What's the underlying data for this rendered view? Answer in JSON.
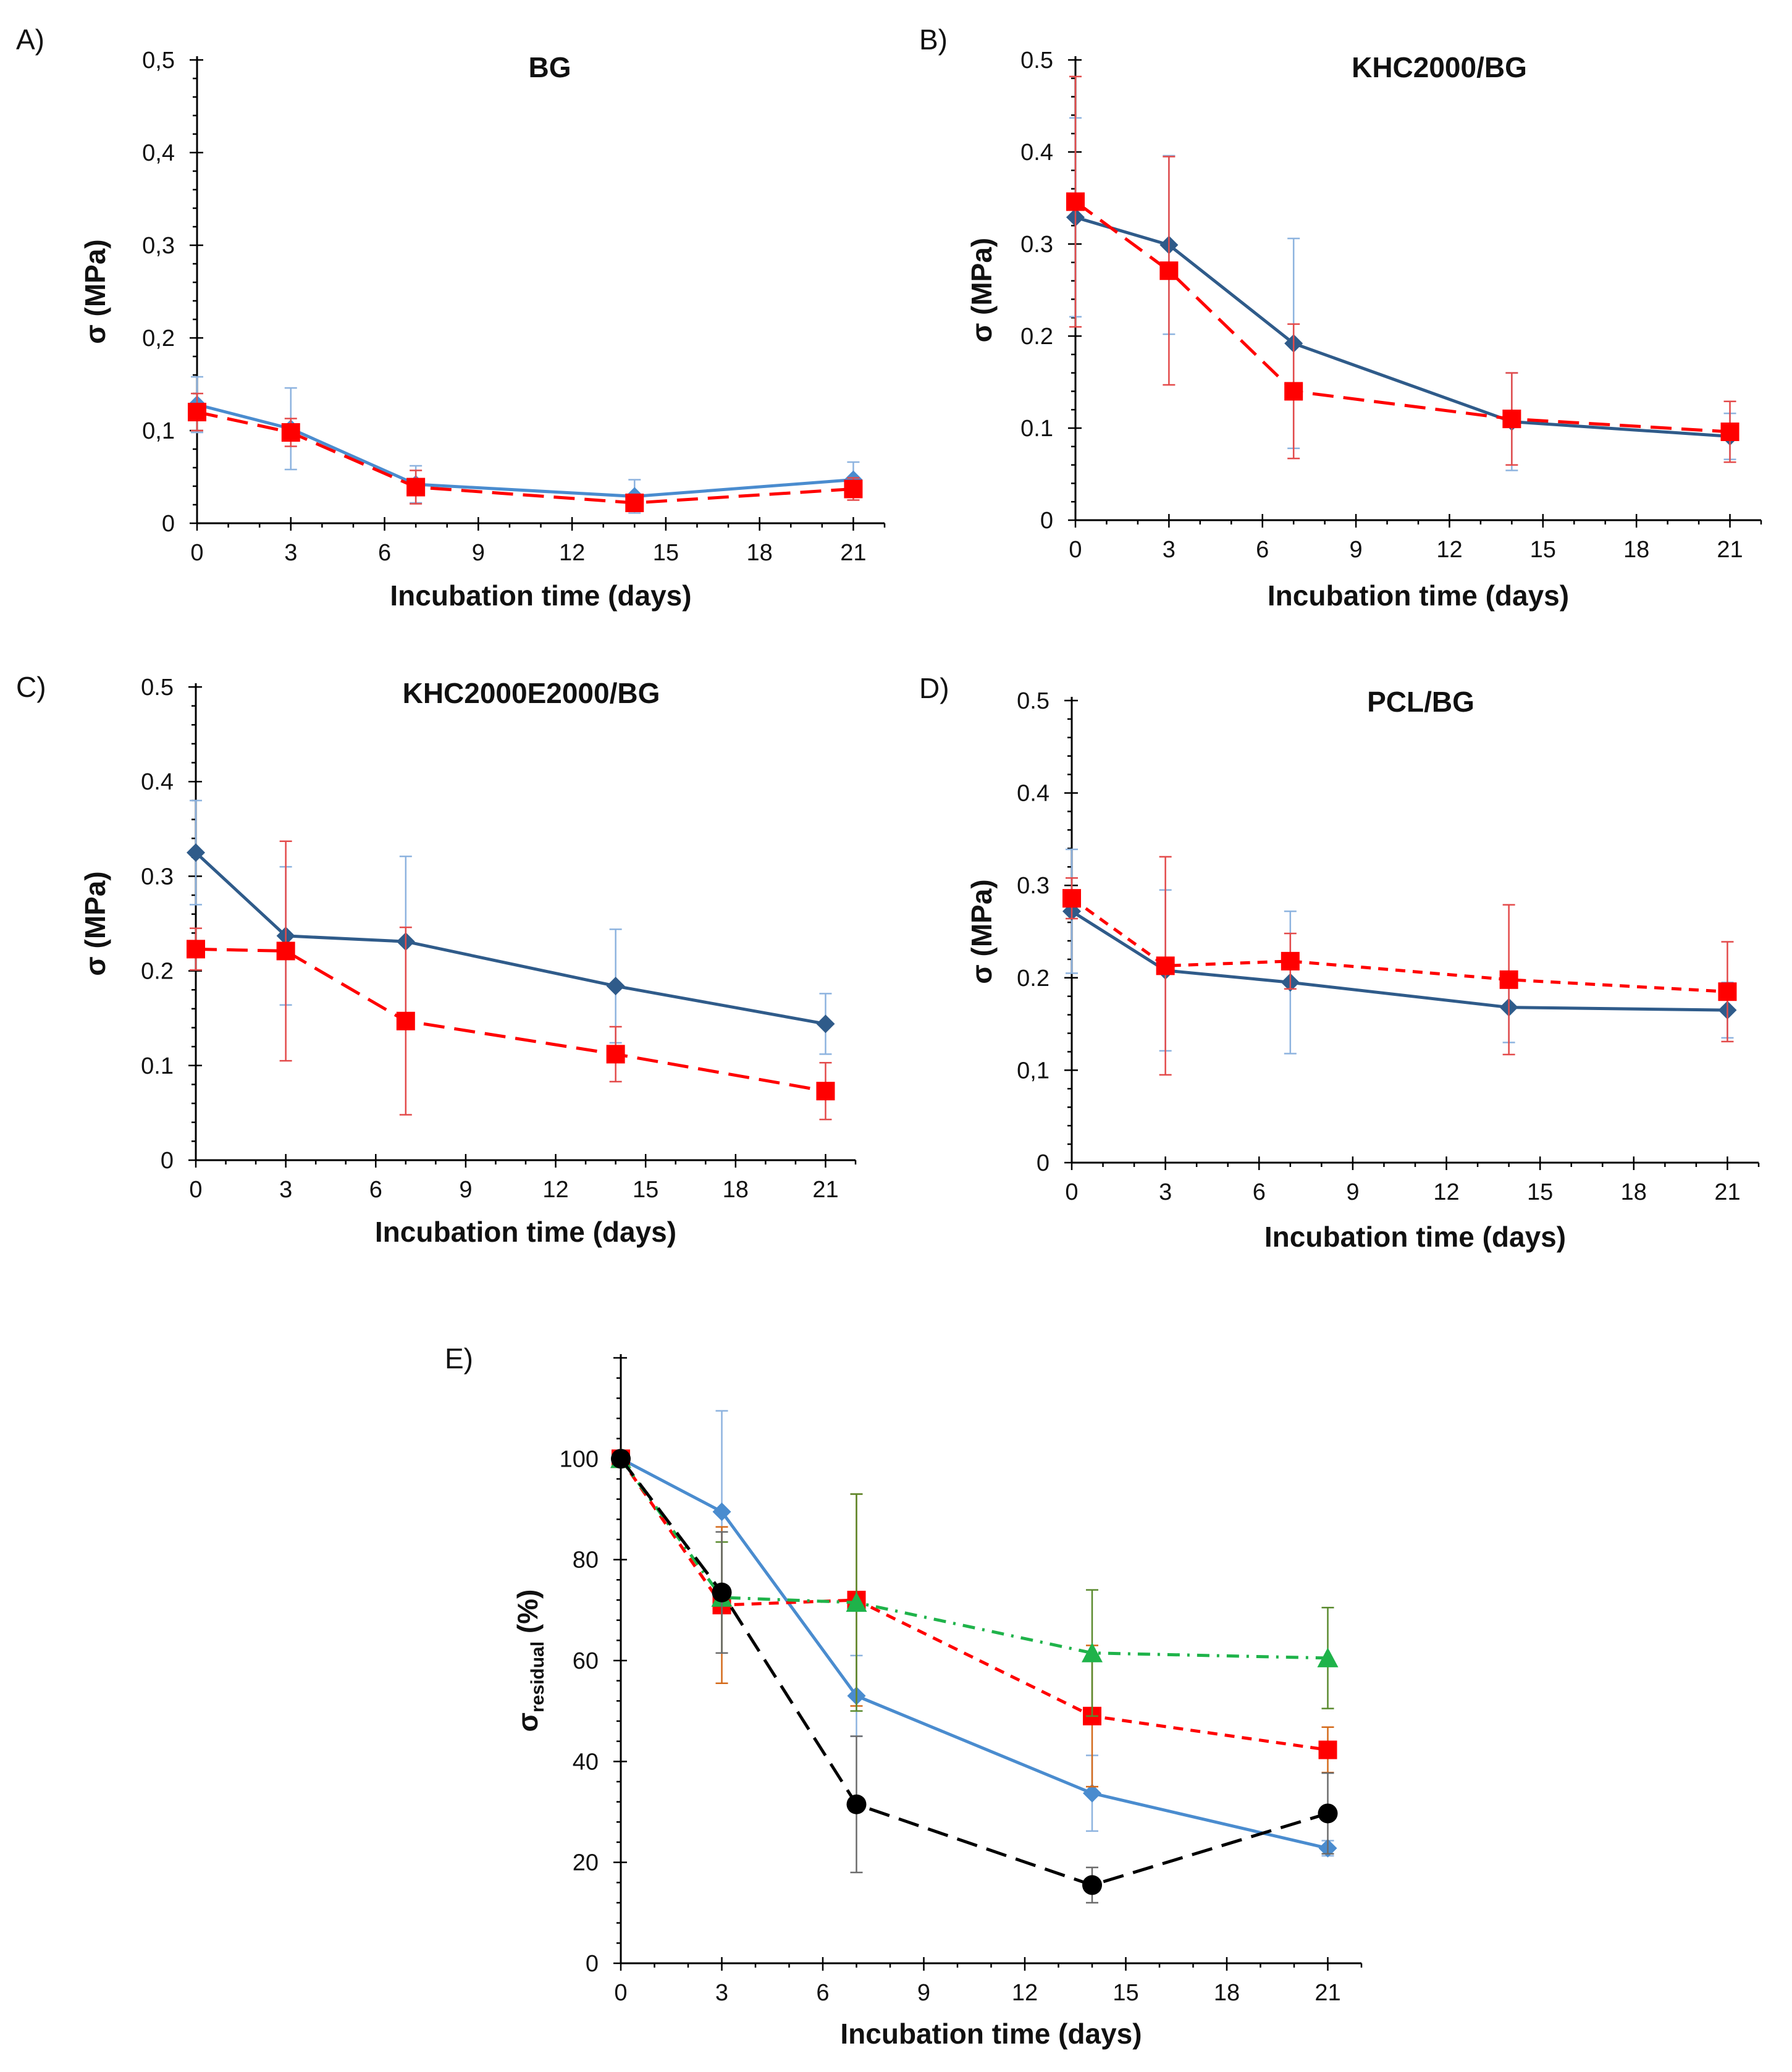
{
  "colors": {
    "blue_dark": "#2f5b8a",
    "blue_light": "#4a8ccf",
    "blue_err": "#8db3df",
    "red": "#ff0000",
    "red_err": "#e34a4a",
    "green": "#1fb34a",
    "green_err": "#5a8a2e",
    "black": "#000000",
    "orange_err": "#d46a1a",
    "axis": "#000000"
  },
  "chart_data": [
    {
      "panel": "A)",
      "type": "line",
      "title": "BG",
      "xlabel": "Incubation time (days)",
      "ylabel": "σ (MPa)",
      "xlim": [
        0,
        22
      ],
      "ylim": [
        0,
        0.5
      ],
      "xticks": [
        0,
        3,
        6,
        9,
        12,
        15,
        18,
        21
      ],
      "xtick_labels": [
        "0",
        "3",
        "6",
        "9",
        "12",
        "15",
        "18",
        "21"
      ],
      "yticks": [
        0,
        0.1,
        0.2,
        0.3,
        0.4,
        0.5
      ],
      "ytick_labels": [
        "0",
        "0,1",
        "0,2",
        "0,3",
        "0,4",
        "0,5"
      ],
      "series": [
        {
          "name": "series-1",
          "color": "#4a8ccf",
          "err_color": "#8db3df",
          "marker": "diamond",
          "dash": "solid",
          "x": [
            0,
            3,
            7,
            14,
            21
          ],
          "values": [
            0.128,
            0.102,
            0.042,
            0.029,
            0.047
          ],
          "err": [
            0.03,
            0.044,
            0.02,
            0.018,
            0.019
          ]
        },
        {
          "name": "series-2",
          "color": "#ff0000",
          "err_color": "#e34a4a",
          "marker": "square",
          "dash": "long",
          "x": [
            0,
            3,
            7,
            14,
            21
          ],
          "values": [
            0.12,
            0.098,
            0.039,
            0.022,
            0.037
          ],
          "err": [
            0.02,
            0.015,
            0.018,
            0.007,
            0.012
          ]
        }
      ]
    },
    {
      "panel": "B)",
      "type": "line",
      "title": "KHC2000/BG",
      "xlabel": "Incubation time (days)",
      "ylabel": "σ (MPa)",
      "xlim": [
        0,
        22
      ],
      "ylim": [
        0,
        0.5
      ],
      "xticks": [
        0,
        3,
        6,
        9,
        12,
        15,
        18,
        21
      ],
      "xtick_labels": [
        "0",
        "3",
        "6",
        "9",
        "12",
        "15",
        "18",
        "21"
      ],
      "yticks": [
        0,
        0.1,
        0.2,
        0.3,
        0.4,
        0.5
      ],
      "ytick_labels": [
        "0",
        "0.1",
        "0.2",
        "0.3",
        "0.4",
        "0.5"
      ],
      "series": [
        {
          "name": "series-1",
          "color": "#2f5b8a",
          "err_color": "#8db3df",
          "marker": "diamond",
          "dash": "solid",
          "x": [
            0,
            3,
            7,
            14,
            21
          ],
          "values": [
            0.329,
            0.299,
            0.192,
            0.107,
            0.091
          ],
          "err": [
            0.108,
            0.097,
            0.114,
            0.053,
            0.025
          ]
        },
        {
          "name": "series-2",
          "color": "#ff0000",
          "err_color": "#e34a4a",
          "marker": "square",
          "dash": "long",
          "x": [
            0,
            3,
            7,
            14,
            21
          ],
          "values": [
            0.346,
            0.271,
            0.14,
            0.11,
            0.096
          ],
          "err": [
            0.136,
            0.124,
            0.073,
            0.05,
            0.033
          ]
        }
      ]
    },
    {
      "panel": "C)",
      "type": "line",
      "title": "KHC2000E2000/BG",
      "xlabel": "Incubation time (days)",
      "ylabel": "σ (MPa)",
      "xlim": [
        0,
        22
      ],
      "ylim": [
        0,
        0.5
      ],
      "xticks": [
        0,
        3,
        6,
        9,
        12,
        15,
        18,
        21
      ],
      "xtick_labels": [
        "0",
        "3",
        "6",
        "9",
        "12",
        "15",
        "18",
        "21"
      ],
      "yticks": [
        0,
        0.1,
        0.2,
        0.3,
        0.4,
        0.5
      ],
      "ytick_labels": [
        "0",
        "0.1",
        "0.2",
        "0.3",
        "0.4",
        "0.5"
      ],
      "series": [
        {
          "name": "series-1",
          "color": "#2f5b8a",
          "err_color": "#8db3df",
          "marker": "diamond",
          "dash": "solid",
          "x": [
            0,
            3,
            7,
            14,
            21
          ],
          "values": [
            0.325,
            0.237,
            0.231,
            0.184,
            0.144
          ],
          "err": [
            0.055,
            0.073,
            0.09,
            0.06,
            0.032
          ]
        },
        {
          "name": "series-2",
          "color": "#ff0000",
          "err_color": "#e34a4a",
          "marker": "square",
          "dash": "long",
          "x": [
            0,
            3,
            7,
            14,
            21
          ],
          "values": [
            0.223,
            0.221,
            0.147,
            0.112,
            0.073
          ],
          "err": [
            0.022,
            0.116,
            0.099,
            0.029,
            0.03
          ]
        }
      ]
    },
    {
      "panel": "D)",
      "type": "line",
      "title": "PCL/BG",
      "xlabel": "Incubation time (days)",
      "ylabel": "σ (MPa)",
      "xlim": [
        0,
        22
      ],
      "ylim": [
        0,
        0.5
      ],
      "xticks": [
        0,
        3,
        6,
        9,
        12,
        15,
        18,
        21
      ],
      "xtick_labels": [
        "0",
        "3",
        "6",
        "9",
        "12",
        "15",
        "18",
        "21"
      ],
      "yticks": [
        0,
        0.1,
        0.2,
        0.3,
        0.4,
        0.5
      ],
      "ytick_labels": [
        "0",
        "0,1",
        "0.2",
        "0.3",
        "0.4",
        "0.5"
      ],
      "series": [
        {
          "name": "series-1",
          "color": "#2f5b8a",
          "err_color": "#8db3df",
          "marker": "diamond",
          "dash": "solid",
          "x": [
            0,
            3,
            7,
            14,
            21
          ],
          "values": [
            0.272,
            0.208,
            0.195,
            0.168,
            0.165
          ],
          "err": [
            0.067,
            0.087,
            0.077,
            0.038,
            0.03
          ]
        },
        {
          "name": "series-2",
          "color": "#ff0000",
          "err_color": "#e34a4a",
          "marker": "square",
          "dash": "short",
          "x": [
            0,
            3,
            7,
            14,
            21
          ],
          "values": [
            0.286,
            0.213,
            0.218,
            0.198,
            0.185
          ],
          "err": [
            0.022,
            0.118,
            0.03,
            0.081,
            0.054
          ]
        }
      ]
    },
    {
      "panel": "E)",
      "type": "line",
      "title": "",
      "xlabel": "Incubation time (days)",
      "ylabel": "σ",
      "ylabel_sub": "residual",
      "ylabel_suffix": " (%)",
      "xlim": [
        0,
        22
      ],
      "ylim": [
        0,
        120
      ],
      "xticks": [
        0,
        3,
        6,
        9,
        12,
        15,
        18,
        21
      ],
      "xtick_labels": [
        "0",
        "3",
        "6",
        "9",
        "12",
        "15",
        "18",
        "21"
      ],
      "yticks": [
        0,
        20,
        40,
        60,
        80,
        100
      ],
      "ytick_labels": [
        "0",
        "20",
        "40",
        "60",
        "80",
        "100"
      ],
      "series": [
        {
          "name": "series-1",
          "color": "#4a8ccf",
          "err_color": "#8db3df",
          "marker": "diamond",
          "dash": "solid",
          "x": [
            0,
            3,
            7,
            14,
            21
          ],
          "values": [
            100,
            89.5,
            53,
            33.7,
            22.8
          ],
          "err": [
            0,
            20,
            8,
            7.5,
            1.5
          ]
        },
        {
          "name": "series-2",
          "color": "#ff0000",
          "err_color": "#d46a1a",
          "marker": "square",
          "dash": "short",
          "x": [
            0,
            3,
            7,
            14,
            21
          ],
          "values": [
            100,
            71,
            72,
            49,
            42.3
          ],
          "err": [
            0,
            15.5,
            21,
            14,
            4.5
          ]
        },
        {
          "name": "series-3",
          "color": "#1fb34a",
          "err_color": "#5a8a2e",
          "marker": "triangle",
          "dash": "dashdot",
          "x": [
            0,
            3,
            7,
            14,
            21
          ],
          "values": [
            100,
            72.5,
            71.5,
            61.5,
            60.5
          ],
          "err": [
            0,
            11,
            21.5,
            12.5,
            10
          ]
        },
        {
          "name": "series-4",
          "color": "#000000",
          "err_color": "#6b6b6b",
          "marker": "circle",
          "dash": "long",
          "x": [
            0,
            3,
            7,
            14,
            21
          ],
          "values": [
            100,
            73.5,
            31.5,
            15.5,
            29.7
          ],
          "err": [
            0,
            12,
            13.5,
            3.5,
            8
          ]
        }
      ]
    }
  ]
}
